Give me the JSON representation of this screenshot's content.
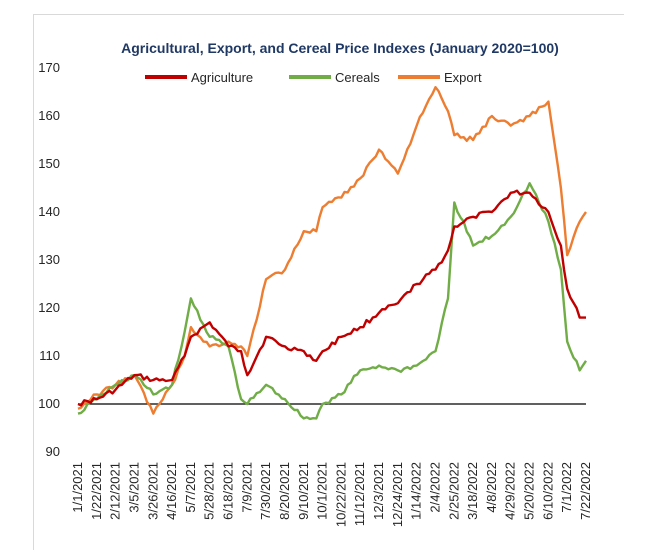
{
  "chart_data": {
    "type": "line",
    "title": "Agricultural, Export, and Cereal Price Indexes (January 2020=100)",
    "xlabel": "",
    "ylabel": "",
    "ylim": [
      90,
      170
    ],
    "yticks": [
      90,
      100,
      110,
      120,
      130,
      140,
      150,
      160,
      170
    ],
    "reference_line": 100,
    "x_tick_labels": [
      "1/1/2021",
      "1/22/2021",
      "2/12/2021",
      "3/5/2021",
      "3/26/2021",
      "4/16/2021",
      "5/7/2021",
      "5/28/2021",
      "6/18/2021",
      "7/9/2021",
      "7/30/2021",
      "8/20/2021",
      "9/10/2021",
      "10/1/2021",
      "10/22/2021",
      "11/12/2021",
      "12/3/2021",
      "12/24/2021",
      "1/14/2022",
      "2/4/2022",
      "2/25/2022",
      "3/18/2022",
      "4/8/2022",
      "4/29/2022",
      "5/20/2022",
      "6/10/2022",
      "7/1/2022",
      "7/22/2022"
    ],
    "legend_position": "top",
    "grid": false,
    "series": [
      {
        "name": "Agriculture",
        "color": "#c00000",
        "points": [
          [
            "1/1/2021",
            100
          ],
          [
            "1/22/2021",
            101
          ],
          [
            "2/12/2021",
            103
          ],
          [
            "3/5/2021",
            106
          ],
          [
            "3/26/2021",
            105
          ],
          [
            "4/16/2021",
            105
          ],
          [
            "4/30/2021",
            110
          ],
          [
            "5/7/2021",
            114
          ],
          [
            "5/28/2021",
            117
          ],
          [
            "6/18/2021",
            112
          ],
          [
            "7/2/2021",
            111
          ],
          [
            "7/9/2021",
            106
          ],
          [
            "7/30/2021",
            114
          ],
          [
            "8/20/2021",
            112
          ],
          [
            "9/10/2021",
            111
          ],
          [
            "9/24/2021",
            109
          ],
          [
            "10/1/2021",
            111
          ],
          [
            "10/22/2021",
            114
          ],
          [
            "11/12/2021",
            116
          ],
          [
            "12/3/2021",
            119
          ],
          [
            "12/24/2021",
            121
          ],
          [
            "1/14/2022",
            125
          ],
          [
            "2/4/2022",
            128
          ],
          [
            "2/18/2022",
            132
          ],
          [
            "2/25/2022",
            137
          ],
          [
            "3/18/2022",
            139
          ],
          [
            "4/8/2022",
            140
          ],
          [
            "4/29/2022",
            144
          ],
          [
            "5/20/2022",
            144
          ],
          [
            "6/10/2022",
            140
          ],
          [
            "6/24/2022",
            133
          ],
          [
            "7/1/2022",
            124
          ],
          [
            "7/15/2022",
            118
          ],
          [
            "7/22/2022",
            118
          ]
        ]
      },
      {
        "name": "Cereals",
        "color": "#70ad47",
        "points": [
          [
            "1/1/2021",
            98
          ],
          [
            "1/22/2021",
            101
          ],
          [
            "2/12/2021",
            104
          ],
          [
            "3/5/2021",
            106
          ],
          [
            "3/26/2021",
            102
          ],
          [
            "4/16/2021",
            104
          ],
          [
            "4/30/2021",
            115
          ],
          [
            "5/7/2021",
            122
          ],
          [
            "5/28/2021",
            114
          ],
          [
            "6/18/2021",
            112
          ],
          [
            "7/2/2021",
            101
          ],
          [
            "7/9/2021",
            100
          ],
          [
            "7/30/2021",
            104
          ],
          [
            "8/20/2021",
            101
          ],
          [
            "9/10/2021",
            97
          ],
          [
            "9/24/2021",
            97
          ],
          [
            "10/1/2021",
            100
          ],
          [
            "10/22/2021",
            102
          ],
          [
            "11/12/2021",
            107
          ],
          [
            "12/3/2021",
            108
          ],
          [
            "12/24/2021",
            107
          ],
          [
            "1/14/2022",
            108
          ],
          [
            "2/4/2022",
            111
          ],
          [
            "2/18/2022",
            122
          ],
          [
            "2/25/2022",
            142
          ],
          [
            "3/18/2022",
            133
          ],
          [
            "4/8/2022",
            135
          ],
          [
            "4/29/2022",
            139
          ],
          [
            "5/20/2022",
            146
          ],
          [
            "6/10/2022",
            138
          ],
          [
            "6/24/2022",
            128
          ],
          [
            "7/1/2022",
            113
          ],
          [
            "7/15/2022",
            107
          ],
          [
            "7/22/2022",
            109
          ]
        ]
      },
      {
        "name": "Export",
        "color": "#ed7d31",
        "points": [
          [
            "1/1/2021",
            99
          ],
          [
            "1/22/2021",
            102
          ],
          [
            "2/12/2021",
            104
          ],
          [
            "3/5/2021",
            106
          ],
          [
            "3/26/2021",
            98
          ],
          [
            "4/16/2021",
            104
          ],
          [
            "4/30/2021",
            110
          ],
          [
            "5/7/2021",
            116
          ],
          [
            "5/28/2021",
            112
          ],
          [
            "6/18/2021",
            113
          ],
          [
            "7/2/2021",
            112
          ],
          [
            "7/9/2021",
            110
          ],
          [
            "7/30/2021",
            126
          ],
          [
            "8/20/2021",
            128
          ],
          [
            "9/10/2021",
            136
          ],
          [
            "9/24/2021",
            136
          ],
          [
            "10/1/2021",
            141
          ],
          [
            "10/22/2021",
            143
          ],
          [
            "11/12/2021",
            147
          ],
          [
            "12/3/2021",
            153
          ],
          [
            "12/24/2021",
            148
          ],
          [
            "1/14/2022",
            158
          ],
          [
            "2/4/2022",
            166
          ],
          [
            "2/18/2022",
            161
          ],
          [
            "2/25/2022",
            156
          ],
          [
            "3/18/2022",
            155
          ],
          [
            "4/8/2022",
            160
          ],
          [
            "4/29/2022",
            158
          ],
          [
            "5/20/2022",
            160
          ],
          [
            "6/10/2022",
            163
          ],
          [
            "6/24/2022",
            145
          ],
          [
            "7/1/2022",
            131
          ],
          [
            "7/15/2022",
            138
          ],
          [
            "7/22/2022",
            140
          ]
        ]
      }
    ]
  }
}
